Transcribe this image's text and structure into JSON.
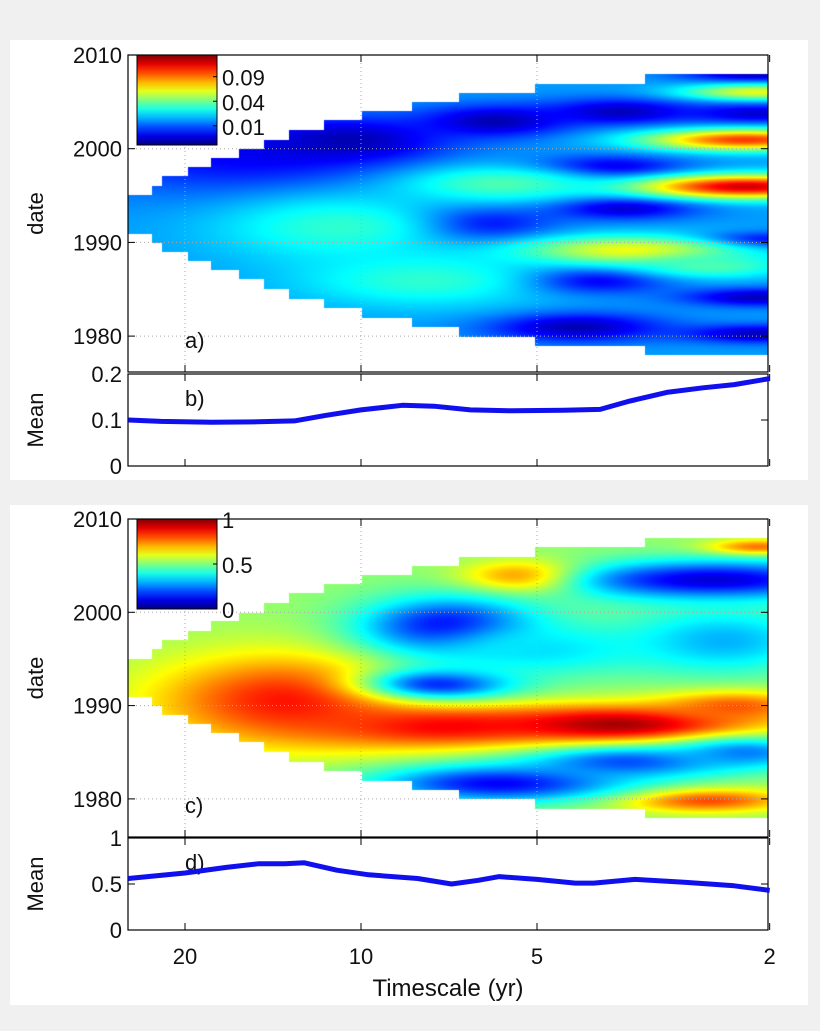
{
  "chart_data": [
    {
      "type": "heatmap",
      "panel_label": "a)",
      "ylabel": "date",
      "xscale": "log",
      "xreversed": true,
      "xlim": [
        25,
        2
      ],
      "ylim": [
        1976,
        2010
      ],
      "yticks": [
        "1980",
        "1990",
        "2000",
        "2010"
      ],
      "xticks": [
        "20",
        "10",
        "5",
        "2"
      ],
      "grid": true,
      "colormap": "jet",
      "colorbar": {
        "ticks": [
          "0.01",
          "0.04",
          "0.09"
        ],
        "scale": "sqrt",
        "placement": "top-left"
      },
      "base_level": 0.28,
      "cone_of_influence": [
        [
          22.8,
          1991,
          1995.1
        ],
        [
          21.9,
          1990,
          1996.1
        ],
        [
          19.8,
          1989,
          1997.1
        ],
        [
          18.1,
          1988.1,
          1998.1
        ],
        [
          16.2,
          1987.1,
          1999.1
        ],
        [
          14.7,
          1986.1,
          2000
        ],
        [
          13.3,
          1985.1,
          2001
        ],
        [
          11.6,
          1984,
          2002.1
        ],
        [
          10,
          1983,
          2003.1
        ],
        [
          8.2,
          1982,
          2004.1
        ],
        [
          6.8,
          1981,
          2005
        ],
        [
          5.05,
          1980,
          2006
        ],
        [
          3.27,
          1979,
          2007
        ],
        [
          2,
          1978,
          2008
        ]
      ],
      "features": [
        {
          "timescale": 15.7,
          "date": 1999.2,
          "level": 0.12,
          "st": 0.7,
          "sd": 3
        },
        {
          "timescale": 10.5,
          "date": 2000.9,
          "level": 0.05,
          "st": 0.35,
          "sd": 1.6
        },
        {
          "timescale": 5.9,
          "date": 2003,
          "level": 0.05,
          "st": 0.3,
          "sd": 1.2
        },
        {
          "timescale": 3.6,
          "date": 2004,
          "level": 0.06,
          "st": 0.3,
          "sd": 1.0
        },
        {
          "timescale": 6.5,
          "date": 1992,
          "level": 0.05,
          "st": 0.3,
          "sd": 1.4
        },
        {
          "timescale": 3.8,
          "date": 1998,
          "level": 0.06,
          "st": 0.3,
          "sd": 0.9
        },
        {
          "timescale": 3.6,
          "date": 1993.8,
          "level": 0.06,
          "st": 0.3,
          "sd": 0.9
        },
        {
          "timescale": 4.1,
          "date": 1986,
          "level": 0.06,
          "st": 0.3,
          "sd": 1.0
        },
        {
          "timescale": 4.3,
          "date": 1981,
          "level": 0.05,
          "st": 0.35,
          "sd": 1.1
        },
        {
          "timescale": 2.1,
          "date": 1990.3,
          "level": 0.08,
          "st": 0.25,
          "sd": 0.6
        },
        {
          "timescale": 2.1,
          "date": 1984.2,
          "level": 0.06,
          "st": 0.3,
          "sd": 0.7
        },
        {
          "timescale": 2.1,
          "date": 1980.3,
          "level": 0.06,
          "st": 0.3,
          "sd": 0.7
        },
        {
          "timescale": 2.1,
          "date": 2003.8,
          "level": 0.08,
          "st": 0.3,
          "sd": 0.8
        },
        {
          "timescale": 2.1,
          "date": 2008,
          "level": 0.06,
          "st": 0.3,
          "sd": 0.6
        },
        {
          "timescale": 2.2,
          "date": 1996,
          "level": 0.92,
          "st": 0.45,
          "sd": 0.9
        },
        {
          "timescale": 2.2,
          "date": 2001,
          "level": 0.82,
          "st": 0.4,
          "sd": 0.8
        },
        {
          "timescale": 2.1,
          "date": 2006.1,
          "level": 0.6,
          "st": 0.3,
          "sd": 0.6
        },
        {
          "timescale": 3.5,
          "date": 1989.2,
          "level": 0.62,
          "st": 0.45,
          "sd": 1.1
        },
        {
          "timescale": 5.8,
          "date": 1996.3,
          "level": 0.45,
          "st": 0.4,
          "sd": 1.4
        },
        {
          "timescale": 10.9,
          "date": 1991.7,
          "level": 0.42,
          "st": 0.5,
          "sd": 2.5
        },
        {
          "timescale": 7.8,
          "date": 1986,
          "level": 0.42,
          "st": 0.5,
          "sd": 2
        },
        {
          "timescale": 2.5,
          "date": 1987.5,
          "level": 0.45,
          "st": 0.3,
          "sd": 0.9
        }
      ]
    },
    {
      "type": "line",
      "panel_label": "b)",
      "ylabel": "Mean",
      "xscale": "log",
      "xreversed": true,
      "xlim": [
        25,
        2
      ],
      "ylim": [
        0,
        0.2
      ],
      "yticks": [
        "0",
        "0.1",
        "0.2"
      ],
      "color": "#1010ee",
      "x": [
        25,
        22,
        18,
        15,
        13,
        11.5,
        10,
        8.5,
        7.5,
        6.5,
        5.5,
        4.5,
        3.9,
        3.5,
        3,
        2.6,
        2.3,
        2
      ],
      "y": [
        0.1,
        0.097,
        0.095,
        0.096,
        0.098,
        0.11,
        0.122,
        0.132,
        0.13,
        0.122,
        0.12,
        0.121,
        0.123,
        0.14,
        0.16,
        0.17,
        0.177,
        0.19
      ]
    },
    {
      "type": "heatmap",
      "panel_label": "c)",
      "ylabel": "date",
      "xscale": "log",
      "xreversed": true,
      "xlim": [
        25,
        2
      ],
      "ylim": [
        1976,
        2010
      ],
      "yticks": [
        "1980",
        "1990",
        "2000",
        "2010"
      ],
      "xticks": [
        "20",
        "10",
        "5",
        "2"
      ],
      "grid": true,
      "colormap": "jet",
      "colorbar": {
        "ticks": [
          "0",
          "0.5",
          "1"
        ],
        "scale": "linear",
        "placement": "top-left"
      },
      "base_level": 0.52,
      "cone_of_influence": [
        [
          22.8,
          1991,
          1995.1
        ],
        [
          21.9,
          1990,
          1996.1
        ],
        [
          19.8,
          1989,
          1997.1
        ],
        [
          18.1,
          1988.1,
          1998.1
        ],
        [
          16.2,
          1987.1,
          1999.1
        ],
        [
          14.7,
          1986.1,
          2000
        ],
        [
          13.3,
          1985.1,
          2001
        ],
        [
          11.6,
          1984,
          2002.1
        ],
        [
          10,
          1983,
          2003.1
        ],
        [
          8.2,
          1982,
          2004.1
        ],
        [
          6.8,
          1981,
          2005
        ],
        [
          5.05,
          1980,
          2006
        ],
        [
          3.27,
          1979,
          2007
        ],
        [
          2,
          1978,
          2008
        ]
      ],
      "features": [
        {
          "timescale": 13.3,
          "date": 1990.6,
          "level": 0.86,
          "st": 0.55,
          "sd": 3.5
        },
        {
          "timescale": 7.5,
          "date": 1987.8,
          "level": 0.86,
          "st": 0.5,
          "sd": 1.6
        },
        {
          "timescale": 3.6,
          "date": 1988,
          "level": 0.97,
          "st": 0.55,
          "sd": 1.5
        },
        {
          "timescale": 2.3,
          "date": 1990,
          "level": 0.8,
          "st": 0.3,
          "sd": 1.2
        },
        {
          "timescale": 5.2,
          "date": 2003.8,
          "level": 0.86,
          "st": 0.25,
          "sd": 1.2
        },
        {
          "timescale": 2.6,
          "date": 1979.9,
          "level": 0.82,
          "st": 0.35,
          "sd": 0.9
        },
        {
          "timescale": 2.1,
          "date": 2007,
          "level": 0.8,
          "st": 0.2,
          "sd": 0.6
        },
        {
          "timescale": 7.1,
          "date": 1998.5,
          "level": 0.1,
          "st": 0.35,
          "sd": 2.2
        },
        {
          "timescale": 7.3,
          "date": 1992.4,
          "level": 0.15,
          "st": 0.3,
          "sd": 1.2
        },
        {
          "timescale": 5,
          "date": 1996,
          "level": 0.35,
          "st": 0.45,
          "sd": 2
        },
        {
          "timescale": 2.5,
          "date": 2003.5,
          "level": 0.08,
          "st": 0.6,
          "sd": 1.5
        },
        {
          "timescale": 2.4,
          "date": 1997,
          "level": 0.3,
          "st": 0.4,
          "sd": 2.5
        },
        {
          "timescale": 5.8,
          "date": 1981.7,
          "level": 0.12,
          "st": 0.5,
          "sd": 1.4
        },
        {
          "timescale": 3.5,
          "date": 1984,
          "level": 0.2,
          "st": 0.4,
          "sd": 1.2
        },
        {
          "timescale": 2.2,
          "date": 1985,
          "level": 0.25,
          "st": 0.3,
          "sd": 1.2
        }
      ]
    },
    {
      "type": "line",
      "panel_label": "d)",
      "ylabel": "Mean",
      "xlabel": "Timescale (yr)",
      "xscale": "log",
      "xreversed": true,
      "xlim": [
        25,
        2
      ],
      "ylim": [
        0,
        1
      ],
      "yticks": [
        "0",
        "0.5",
        "1"
      ],
      "xticks": [
        "20",
        "10",
        "5",
        "2"
      ],
      "color": "#1010ee",
      "x": [
        25,
        20,
        17,
        15,
        13.5,
        12.5,
        11,
        9.7,
        8,
        7,
        6.3,
        5.8,
        5,
        4.3,
        4,
        3.4,
        2.8,
        2.3,
        2
      ],
      "y": [
        0.56,
        0.62,
        0.68,
        0.72,
        0.72,
        0.73,
        0.65,
        0.6,
        0.56,
        0.5,
        0.54,
        0.58,
        0.55,
        0.51,
        0.51,
        0.55,
        0.52,
        0.48,
        0.43
      ]
    }
  ]
}
